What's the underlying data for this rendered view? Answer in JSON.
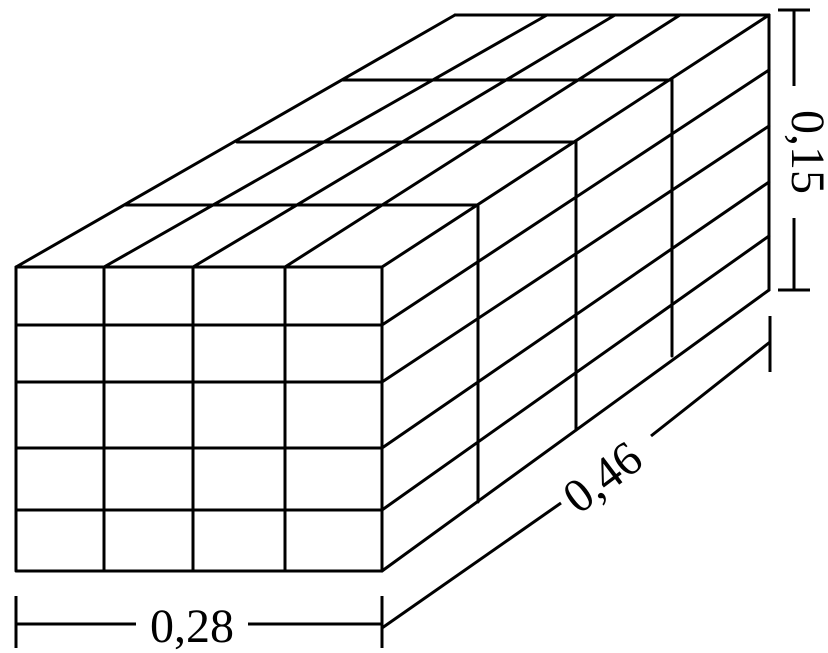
{
  "figure": {
    "width_label": "0,28",
    "depth_label": "0,46",
    "height_label": "0,15",
    "colors": {
      "line": "#000000",
      "background": "#ffffff"
    },
    "grid": {
      "front_columns": 4,
      "front_rows": 5,
      "depth_sections": 4
    }
  }
}
